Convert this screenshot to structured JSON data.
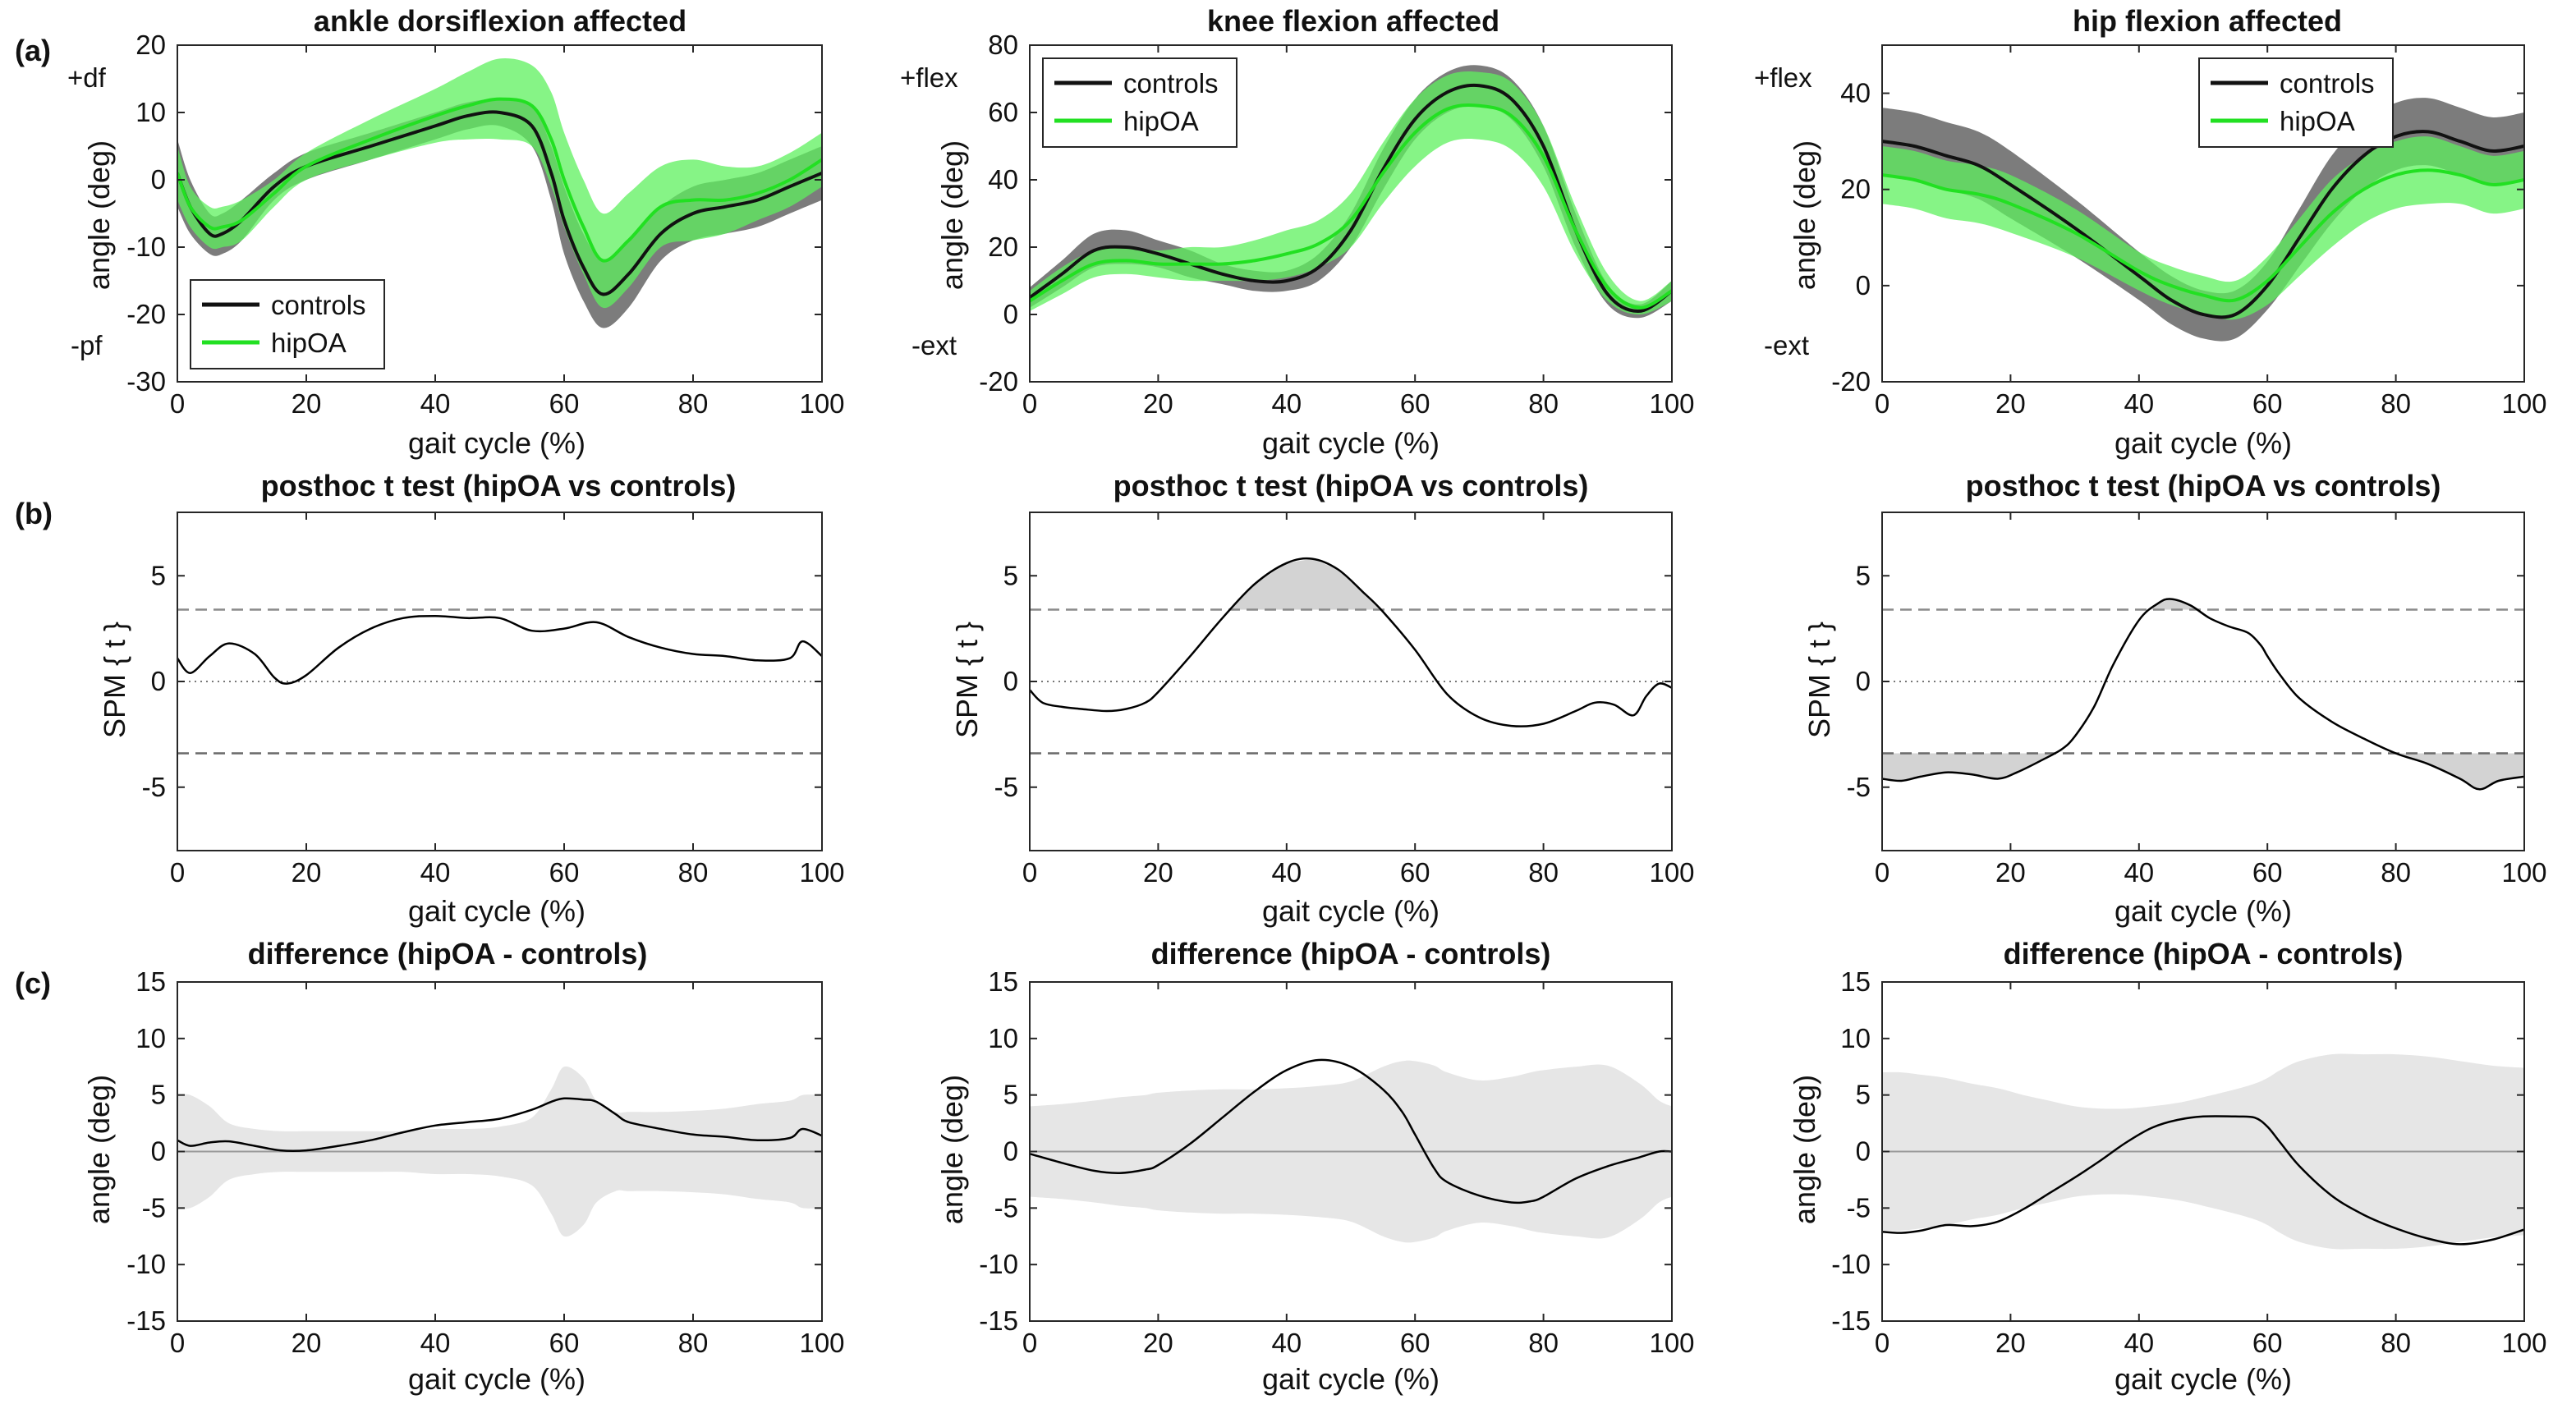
{
  "panel_labels": [
    "(a)",
    "(b)",
    "(c)"
  ],
  "chart_data": [
    {
      "type": "line",
      "id": "ankle-angle",
      "title": "ankle dorsiflexion affected",
      "xlabel": "gait cycle (%)",
      "ylabel": "angle (deg)",
      "xlim": [
        0,
        100
      ],
      "ylim": [
        -30,
        20
      ],
      "xticks": [
        0,
        20,
        40,
        60,
        80,
        100
      ],
      "yticks": [
        -30,
        -20,
        -10,
        0,
        10,
        20
      ],
      "direction_labels": {
        "pos": "+df",
        "neg": "-pf"
      },
      "legend": {
        "position": "bottom-left",
        "entries": [
          "controls",
          "hipOA"
        ]
      },
      "series": [
        {
          "name": "controls",
          "color": "#111111",
          "band_color": "#6e6e6e",
          "x": [
            0,
            2,
            5,
            7,
            10,
            15,
            20,
            30,
            40,
            45,
            50,
            55,
            58,
            60,
            63,
            66,
            70,
            75,
            80,
            85,
            90,
            95,
            100
          ],
          "values": [
            1,
            -4,
            -8,
            -8,
            -6,
            -1,
            2,
            5,
            8,
            9.5,
            10,
            8,
            1,
            -6,
            -13,
            -17,
            -14,
            -8,
            -5,
            -4,
            -3,
            -1,
            1
          ],
          "sd": [
            5,
            4,
            3,
            3,
            3,
            2,
            2,
            2,
            2,
            2,
            2,
            3,
            4,
            5,
            5,
            5,
            5,
            4,
            4,
            4,
            4,
            4,
            4
          ]
        },
        {
          "name": "hipOA",
          "color": "#22e022",
          "band_color": "#5ef05e",
          "x": [
            0,
            2,
            5,
            7,
            10,
            15,
            20,
            30,
            40,
            45,
            50,
            55,
            58,
            60,
            63,
            66,
            70,
            75,
            80,
            85,
            90,
            95,
            100
          ],
          "values": [
            1,
            -4,
            -7,
            -7,
            -6,
            -2,
            2,
            6,
            9.5,
            11,
            12,
            11,
            6,
            0,
            -7,
            -12,
            -9,
            -4,
            -3,
            -3,
            -2,
            0,
            3
          ],
          "sd": [
            4,
            3,
            3,
            3,
            3,
            2,
            2,
            3,
            4,
            5,
            6,
            6,
            7,
            7,
            7,
            7,
            7,
            6,
            6,
            5,
            4,
            4,
            4
          ]
        }
      ]
    },
    {
      "type": "line",
      "id": "knee-angle",
      "title": "knee flexion affected",
      "xlabel": "gait cycle (%)",
      "ylabel": "angle (deg)",
      "xlim": [
        0,
        100
      ],
      "ylim": [
        -20,
        80
      ],
      "xticks": [
        0,
        20,
        40,
        60,
        80,
        100
      ],
      "yticks": [
        -20,
        0,
        20,
        40,
        60,
        80
      ],
      "direction_labels": {
        "pos": "+flex",
        "neg": "-ext"
      },
      "legend": {
        "position": "top-left",
        "entries": [
          "controls",
          "hipOA"
        ]
      },
      "series": [
        {
          "name": "controls",
          "color": "#111111",
          "band_color": "#6e6e6e",
          "x": [
            0,
            5,
            10,
            15,
            20,
            25,
            30,
            35,
            40,
            45,
            50,
            55,
            60,
            65,
            70,
            75,
            80,
            85,
            90,
            95,
            100
          ],
          "values": [
            5,
            12,
            19,
            20,
            18,
            15,
            12,
            10,
            10,
            14,
            25,
            43,
            58,
            66,
            68,
            64,
            50,
            25,
            6,
            1,
            7
          ],
          "sd": [
            3,
            4,
            5,
            5,
            4,
            4,
            3,
            3,
            3,
            4,
            5,
            6,
            6,
            6,
            6,
            6,
            6,
            5,
            3,
            2,
            3
          ]
        },
        {
          "name": "hipOA",
          "color": "#22e022",
          "band_color": "#5ef05e",
          "x": [
            0,
            5,
            10,
            15,
            20,
            25,
            30,
            35,
            40,
            45,
            50,
            55,
            60,
            65,
            70,
            75,
            80,
            85,
            90,
            95,
            100
          ],
          "values": [
            4,
            10,
            15,
            16,
            15,
            15,
            15,
            16,
            18,
            21,
            28,
            42,
            54,
            61,
            62,
            59,
            47,
            25,
            8,
            2,
            7
          ],
          "sd": [
            3,
            4,
            4,
            4,
            4,
            5,
            5,
            6,
            7,
            7,
            8,
            9,
            10,
            10,
            10,
            10,
            9,
            7,
            4,
            2,
            3
          ]
        }
      ]
    },
    {
      "type": "line",
      "id": "hip-angle",
      "title": "hip flexion affected",
      "xlabel": "gait cycle (%)",
      "ylabel": "angle (deg)",
      "xlim": [
        0,
        100
      ],
      "ylim": [
        -20,
        50
      ],
      "xticks": [
        0,
        20,
        40,
        60,
        80,
        100
      ],
      "yticks": [
        -20,
        0,
        20,
        40
      ],
      "direction_labels": {
        "pos": "+flex",
        "neg": "-ext"
      },
      "legend": {
        "position": "top-right",
        "entries": [
          "controls",
          "hipOA"
        ]
      },
      "series": [
        {
          "name": "controls",
          "color": "#111111",
          "band_color": "#6e6e6e",
          "x": [
            0,
            5,
            10,
            15,
            20,
            30,
            40,
            45,
            50,
            55,
            60,
            65,
            70,
            75,
            80,
            85,
            90,
            95,
            100
          ],
          "values": [
            30,
            29,
            27,
            25,
            21,
            12,
            2,
            -3,
            -6,
            -6,
            0,
            10,
            20,
            27,
            31,
            32,
            30,
            28,
            29
          ],
          "sd": [
            7,
            7,
            7,
            7,
            7,
            6,
            5,
            5,
            5,
            5,
            5,
            6,
            7,
            7,
            7,
            7,
            7,
            7,
            7
          ]
        },
        {
          "name": "hipOA",
          "color": "#22e022",
          "band_color": "#5ef05e",
          "x": [
            0,
            5,
            10,
            15,
            20,
            30,
            40,
            45,
            50,
            55,
            60,
            65,
            70,
            75,
            80,
            85,
            90,
            95,
            100
          ],
          "values": [
            23,
            22,
            20,
            19,
            17,
            11,
            3,
            0,
            -2,
            -3,
            1,
            8,
            15,
            20,
            23,
            24,
            23,
            21,
            22
          ],
          "sd": [
            6,
            6,
            6,
            6,
            6,
            5,
            4,
            4,
            4,
            4,
            5,
            6,
            7,
            7,
            7,
            7,
            6,
            6,
            6
          ]
        }
      ]
    },
    {
      "type": "line",
      "id": "ankle-spm",
      "title": "posthoc t test (hipOA vs controls)",
      "xlabel": "gait cycle (%)",
      "ylabel": "SPM { t }",
      "xlim": [
        0,
        100
      ],
      "ylim": [
        -8,
        8
      ],
      "xticks": [
        0,
        20,
        40,
        60,
        80,
        100
      ],
      "yticks": [
        -5,
        0,
        5
      ],
      "threshold": 3.4,
      "shaded": "none",
      "series": [
        {
          "name": "SPM{t}",
          "x": [
            0,
            2,
            5,
            8,
            12,
            15,
            17,
            20,
            25,
            30,
            35,
            40,
            45,
            50,
            55,
            60,
            65,
            70,
            75,
            80,
            85,
            90,
            95,
            97,
            100
          ],
          "values": [
            1.1,
            0.4,
            1.2,
            1.8,
            1.3,
            0.2,
            -0.1,
            0.3,
            1.6,
            2.5,
            3.0,
            3.1,
            3.0,
            3.0,
            2.4,
            2.5,
            2.8,
            2.1,
            1.6,
            1.3,
            1.2,
            1.0,
            1.1,
            1.9,
            1.2
          ]
        }
      ]
    },
    {
      "type": "line",
      "id": "knee-spm",
      "title": "posthoc t test (hipOA vs controls)",
      "xlabel": "gait cycle (%)",
      "ylabel": "SPM { t }",
      "xlim": [
        0,
        100
      ],
      "ylim": [
        -8,
        8
      ],
      "xticks": [
        0,
        20,
        40,
        60,
        80,
        100
      ],
      "yticks": [
        -5,
        0,
        5
      ],
      "threshold": 3.4,
      "shaded": "above",
      "series": [
        {
          "name": "SPM{t}",
          "x": [
            0,
            2,
            5,
            8,
            12,
            15,
            18,
            20,
            25,
            30,
            35,
            40,
            44,
            48,
            52,
            55,
            60,
            65,
            70,
            75,
            80,
            85,
            88,
            91,
            94,
            96,
            98,
            100
          ],
          "values": [
            -0.4,
            -1.0,
            -1.2,
            -1.3,
            -1.4,
            -1.3,
            -1.0,
            -0.5,
            1.2,
            3.0,
            4.6,
            5.6,
            5.8,
            5.3,
            4.2,
            3.3,
            1.5,
            -0.6,
            -1.7,
            -2.1,
            -2.0,
            -1.4,
            -1.0,
            -1.1,
            -1.6,
            -0.7,
            -0.1,
            -0.3
          ]
        }
      ]
    },
    {
      "type": "line",
      "id": "hip-spm",
      "title": "posthoc t test (hipOA vs controls)",
      "xlabel": "gait cycle (%)",
      "ylabel": "SPM { t }",
      "xlim": [
        0,
        100
      ],
      "ylim": [
        -8,
        8
      ],
      "xticks": [
        0,
        20,
        40,
        60,
        80,
        100
      ],
      "yticks": [
        -5,
        0,
        5
      ],
      "threshold": 3.4,
      "shaded": "both",
      "series": [
        {
          "name": "SPM{t}",
          "x": [
            0,
            3,
            6,
            10,
            14,
            18,
            21,
            25,
            28,
            30,
            33,
            36,
            40,
            43,
            45,
            48,
            51,
            54,
            57,
            59,
            60,
            62,
            65,
            70,
            75,
            80,
            85,
            90,
            93,
            96,
            100
          ],
          "values": [
            -4.6,
            -4.7,
            -4.5,
            -4.3,
            -4.4,
            -4.6,
            -4.3,
            -3.7,
            -3.2,
            -2.6,
            -1.2,
            0.8,
            2.9,
            3.7,
            3.9,
            3.6,
            3.0,
            2.6,
            2.3,
            1.7,
            1.2,
            0.3,
            -0.8,
            -1.9,
            -2.7,
            -3.4,
            -3.9,
            -4.6,
            -5.1,
            -4.7,
            -4.5
          ]
        }
      ]
    },
    {
      "type": "line",
      "id": "ankle-diff",
      "title": "difference (hipOA - controls)",
      "xlabel": "gait cycle (%)",
      "ylabel": "angle (deg)",
      "xlim": [
        0,
        100
      ],
      "ylim": [
        -15,
        15
      ],
      "xticks": [
        0,
        20,
        40,
        60,
        80,
        100
      ],
      "yticks": [
        -15,
        -10,
        -5,
        0,
        5,
        10,
        15
      ],
      "series": [
        {
          "name": "difference",
          "x": [
            0,
            2,
            5,
            8,
            12,
            16,
            20,
            25,
            30,
            35,
            40,
            45,
            50,
            55,
            58,
            60,
            63,
            65,
            68,
            70,
            75,
            80,
            85,
            90,
            95,
            97,
            100
          ],
          "values": [
            1.0,
            0.5,
            0.8,
            0.9,
            0.5,
            0.1,
            0.1,
            0.5,
            1.0,
            1.7,
            2.3,
            2.6,
            2.9,
            3.7,
            4.4,
            4.7,
            4.6,
            4.4,
            3.3,
            2.6,
            2.0,
            1.5,
            1.3,
            1.0,
            1.2,
            2.0,
            1.4
          ],
          "band": [
            5.0,
            5.0,
            4.0,
            2.5,
            2.0,
            1.8,
            1.8,
            1.8,
            1.8,
            1.8,
            2.0,
            2.0,
            2.2,
            3.0,
            5.5,
            7.5,
            6.5,
            4.5,
            3.5,
            3.5,
            3.5,
            3.6,
            3.8,
            4.2,
            4.5,
            5.0,
            5.0
          ]
        }
      ]
    },
    {
      "type": "line",
      "id": "knee-diff",
      "title": "difference (hipOA - controls)",
      "xlabel": "gait cycle (%)",
      "ylabel": "angle (deg)",
      "xlim": [
        0,
        100
      ],
      "ylim": [
        -15,
        15
      ],
      "xticks": [
        0,
        20,
        40,
        60,
        80,
        100
      ],
      "yticks": [
        -15,
        -10,
        -5,
        0,
        5,
        10,
        15
      ],
      "series": [
        {
          "name": "difference",
          "x": [
            0,
            5,
            10,
            14,
            18,
            20,
            25,
            30,
            35,
            40,
            45,
            50,
            55,
            58,
            60,
            63,
            65,
            70,
            75,
            78,
            80,
            85,
            90,
            95,
            98,
            100
          ],
          "values": [
            -0.2,
            -1.0,
            -1.7,
            -1.9,
            -1.6,
            -1.2,
            0.7,
            3.0,
            5.3,
            7.2,
            8.1,
            7.5,
            5.5,
            3.5,
            1.5,
            -1.5,
            -2.7,
            -3.9,
            -4.5,
            -4.4,
            -4.0,
            -2.4,
            -1.3,
            -0.5,
            0.0,
            0.0
          ],
          "band": [
            4.0,
            4.2,
            4.5,
            4.8,
            5.0,
            5.2,
            5.4,
            5.5,
            5.5,
            5.6,
            5.8,
            6.2,
            7.5,
            8.0,
            8.0,
            7.6,
            7.0,
            6.3,
            6.6,
            7.0,
            7.2,
            7.5,
            7.6,
            6.0,
            4.5,
            4.0
          ]
        }
      ]
    },
    {
      "type": "line",
      "id": "hip-diff",
      "title": "difference (hipOA - controls)",
      "xlabel": "gait cycle (%)",
      "ylabel": "angle (deg)",
      "xlim": [
        0,
        100
      ],
      "ylim": [
        -15,
        15
      ],
      "xticks": [
        0,
        20,
        40,
        60,
        80,
        100
      ],
      "yticks": [
        -15,
        -10,
        -5,
        0,
        5,
        10,
        15
      ],
      "series": [
        {
          "name": "difference",
          "x": [
            0,
            3,
            6,
            10,
            14,
            18,
            22,
            26,
            30,
            34,
            38,
            42,
            46,
            50,
            55,
            58,
            60,
            62,
            65,
            70,
            75,
            80,
            85,
            90,
            95,
            100
          ],
          "values": [
            -7.1,
            -7.2,
            -7.0,
            -6.5,
            -6.6,
            -6.2,
            -5.1,
            -3.7,
            -2.3,
            -0.8,
            0.8,
            2.1,
            2.8,
            3.1,
            3.1,
            3.0,
            2.2,
            0.8,
            -1.3,
            -3.9,
            -5.6,
            -6.8,
            -7.7,
            -8.2,
            -7.8,
            -6.9
          ],
          "band": [
            7.0,
            7.0,
            6.8,
            6.5,
            6.0,
            5.6,
            5.0,
            4.5,
            4.0,
            3.8,
            3.8,
            4.0,
            4.3,
            4.8,
            5.5,
            6.0,
            6.5,
            7.2,
            8.0,
            8.6,
            8.6,
            8.6,
            8.4,
            8.0,
            7.6,
            7.4
          ]
        }
      ]
    }
  ]
}
